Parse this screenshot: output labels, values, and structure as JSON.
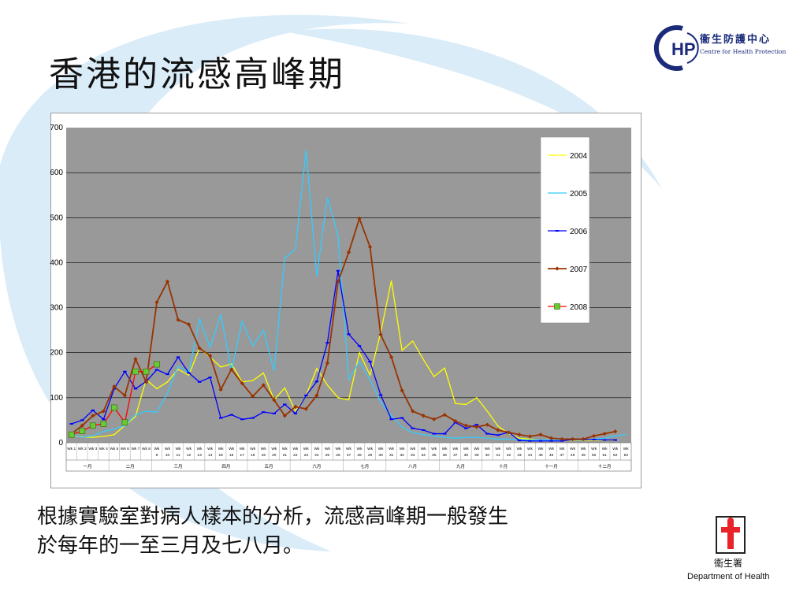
{
  "slide": {
    "title": "香港的流感高峰期",
    "caption_line1": "根據實驗室對病人樣本的分析，流感高峰期一般發生",
    "caption_line2": "於每年的一至三月及七八月。"
  },
  "logos": {
    "chp_zh": "衞生防護中心",
    "chp_en": "Centre for Health Protection",
    "chp_mark": "HP",
    "doh_zh": "衞生署",
    "doh_en": "Department of Health"
  },
  "colors": {
    "plot_bg": "#999999",
    "swoosh": "#d9ecf8",
    "s2004": "#ffff00",
    "s2005": "#33ccff",
    "s2006": "#0000ff",
    "s2007": "#993300",
    "s2008": "#ff0000",
    "marker2008": "#66cc33",
    "brand_blue": "#1b2b7a",
    "brand_red": "#e8232a"
  },
  "chart_data": {
    "type": "line",
    "ylim": [
      0,
      700
    ],
    "yticks": [
      "0",
      "100",
      "200",
      "300",
      "400",
      "500",
      "600",
      "700"
    ],
    "week_labels": [
      "Wk 1",
      "Wk 2",
      "Wk 3",
      "Wk 4",
      "Wk 5",
      "Wk 6",
      "Wk 7",
      "Wk 8",
      "Wk 9",
      "Wk 10",
      "Wk 11",
      "Wk 12",
      "Wk 13",
      "Wk 14",
      "Wk 15",
      "Wk 16",
      "Wk 17",
      "Wk 18",
      "Wk 19",
      "Wk 20",
      "Wk 21",
      "Wk 22",
      "Wk 23",
      "Wk 24",
      "Wk 25",
      "Wk 26",
      "Wk 27",
      "Wk 28",
      "Wk 29",
      "Wk 30",
      "Wk 31",
      "Wk 32",
      "Wk 33",
      "Wk 34",
      "Wk 35",
      "Wk 36",
      "Wk 37",
      "Wk 38",
      "Wk 39",
      "Wk 40",
      "Wk 41",
      "Wk 42",
      "Wk 43",
      "Wk 44",
      "Wk 45",
      "Wk 46",
      "Wk 47",
      "Wk 48",
      "Wk 49",
      "Wk 50",
      "Wk 51",
      "Wk 52",
      "Wk 53"
    ],
    "months": [
      {
        "label": "一月",
        "start": 1,
        "end": 4
      },
      {
        "label": "二月",
        "start": 5,
        "end": 8
      },
      {
        "label": "三月",
        "start": 9,
        "end": 13
      },
      {
        "label": "四月",
        "start": 14,
        "end": 17
      },
      {
        "label": "五月",
        "start": 18,
        "end": 21
      },
      {
        "label": "六月",
        "start": 22,
        "end": 26
      },
      {
        "label": "七月",
        "start": 27,
        "end": 30
      },
      {
        "label": "八月",
        "start": 31,
        "end": 35
      },
      {
        "label": "九月",
        "start": 36,
        "end": 39
      },
      {
        "label": "十月",
        "start": 40,
        "end": 43
      },
      {
        "label": "十一月",
        "start": 44,
        "end": 48
      },
      {
        "label": "十二月",
        "start": 49,
        "end": 53
      }
    ],
    "series": [
      {
        "name": "2004",
        "key": "s2004",
        "marker": "none",
        "values": [
          16,
          13,
          12,
          14,
          18,
          38,
          58,
          140,
          120,
          135,
          163,
          150,
          210,
          190,
          168,
          175,
          135,
          138,
          155,
          95,
          122,
          70,
          105,
          165,
          128,
          100,
          95,
          200,
          150,
          245,
          360,
          205,
          226,
          185,
          147,
          166,
          87,
          85,
          100,
          70,
          37,
          20,
          10,
          8,
          5,
          5,
          5,
          5,
          5,
          5,
          5,
          5,
          null
        ]
      },
      {
        "name": "2005",
        "key": "s2005",
        "marker": "none",
        "values": [
          18,
          12,
          15,
          25,
          30,
          38,
          62,
          70,
          68,
          110,
          170,
          155,
          275,
          212,
          285,
          160,
          270,
          215,
          250,
          160,
          410,
          430,
          650,
          370,
          545,
          460,
          140,
          180,
          140,
          90,
          60,
          35,
          22,
          18,
          15,
          12,
          10,
          12,
          12,
          10,
          8,
          8,
          7,
          6,
          6,
          6,
          6,
          6,
          6,
          8,
          10,
          15,
          18
        ]
      },
      {
        "name": "2006",
        "key": "s2006",
        "marker": "dash",
        "values": [
          42,
          50,
          72,
          52,
          120,
          158,
          120,
          136,
          162,
          152,
          190,
          155,
          135,
          145,
          55,
          62,
          52,
          55,
          68,
          65,
          85,
          65,
          105,
          136,
          222,
          382,
          241,
          215,
          180,
          106,
          52,
          55,
          32,
          28,
          20,
          20,
          45,
          32,
          40,
          20,
          17,
          23,
          5,
          4,
          4,
          4,
          4,
          7,
          7,
          7,
          6,
          6,
          null
        ]
      },
      {
        "name": "2007",
        "key": "s2007",
        "marker": "diamond",
        "values": [
          20,
          38,
          60,
          70,
          125,
          105,
          186,
          135,
          312,
          358,
          273,
          263,
          210,
          193,
          118,
          163,
          132,
          103,
          128,
          95,
          60,
          80,
          75,
          105,
          177,
          358,
          423,
          498,
          435,
          240,
          190,
          116,
          70,
          60,
          52,
          62,
          48,
          38,
          35,
          40,
          28,
          23,
          18,
          14,
          18,
          10,
          8,
          8,
          8,
          15,
          20,
          25,
          null
        ]
      },
      {
        "name": "2008",
        "key": "s2008",
        "marker": "square",
        "values": [
          18,
          26,
          38,
          42,
          78,
          45,
          158,
          158,
          174,
          null,
          null,
          null,
          null,
          null,
          null,
          null,
          null,
          null,
          null,
          null,
          null,
          null,
          null,
          null,
          null,
          null,
          null,
          null,
          null,
          null,
          null,
          null,
          null,
          null,
          null,
          null,
          null,
          null,
          null,
          null,
          null,
          null,
          null,
          null,
          null,
          null,
          null,
          null,
          null,
          null,
          null,
          null,
          null
        ]
      }
    ]
  }
}
